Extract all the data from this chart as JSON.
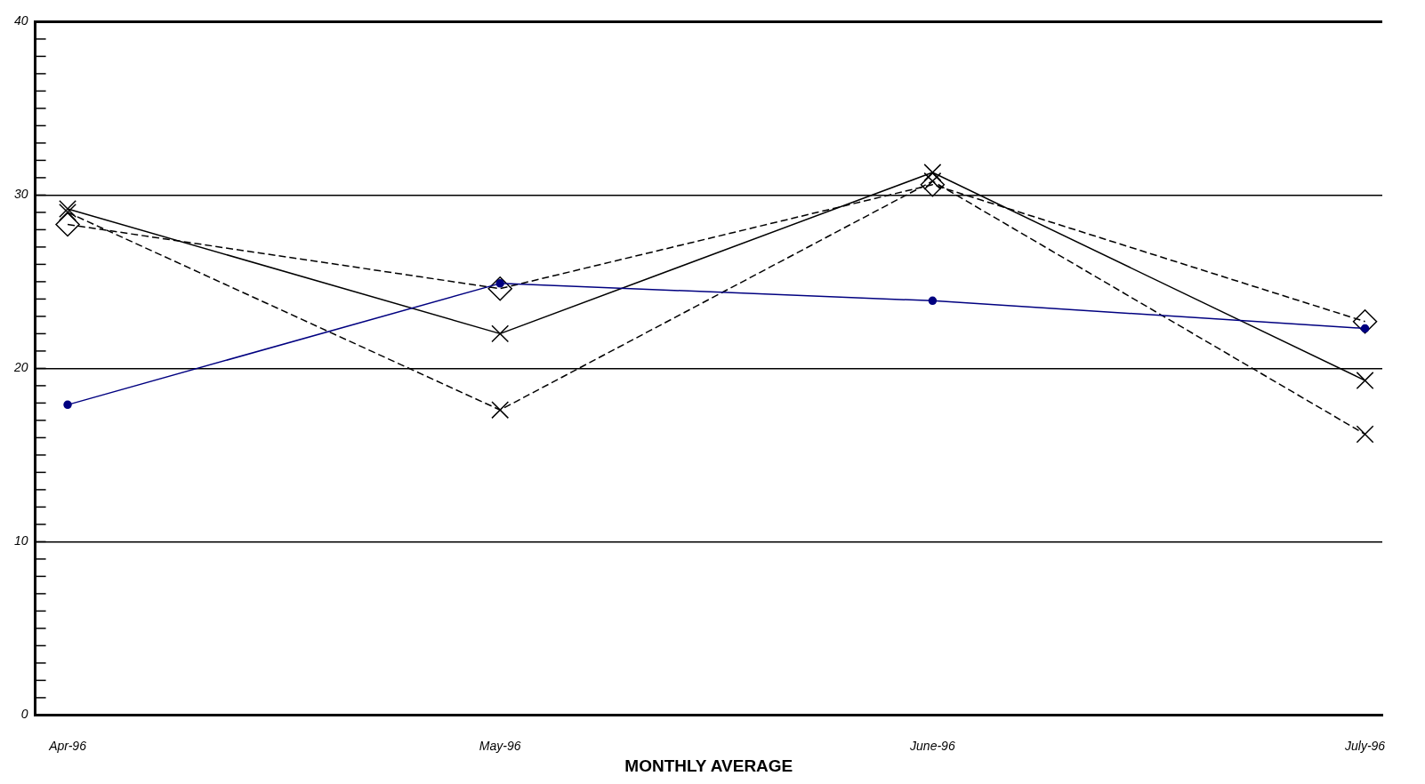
{
  "chart_data": {
    "type": "line",
    "xlabel": "MONTHLY AVERAGE",
    "categories": [
      "Apr-96",
      "May-96",
      "June-96",
      "July-96"
    ],
    "ylim": [
      0,
      40
    ],
    "yticks": [
      0,
      {
        "value": 1,
        "label": null
      },
      {
        "value": 2,
        "label": null
      },
      {
        "value": 3,
        "label": null
      },
      {
        "value": 4,
        "label": null
      },
      {
        "value": 5,
        "label": null
      },
      {
        "value": 6,
        "label": null
      },
      {
        "value": 7,
        "label": null
      },
      {
        "value": 8,
        "label": null
      },
      {
        "value": 9,
        "label": null
      },
      10,
      {
        "value": 11,
        "label": null
      },
      {
        "value": 12,
        "label": null
      },
      {
        "value": 13,
        "label": null
      },
      {
        "value": 14,
        "label": null
      },
      {
        "value": 15,
        "label": null
      },
      {
        "value": 16,
        "label": null
      },
      {
        "value": 17,
        "label": null
      },
      {
        "value": 18,
        "label": null
      },
      {
        "value": 19,
        "label": null
      },
      20,
      {
        "value": 21,
        "label": null
      },
      {
        "value": 22,
        "label": null
      },
      {
        "value": 23,
        "label": null
      },
      {
        "value": 24,
        "label": null
      },
      {
        "value": 25,
        "label": null
      },
      {
        "value": 26,
        "label": null
      },
      {
        "value": 27,
        "label": null
      },
      {
        "value": 28,
        "label": null
      },
      {
        "value": 29,
        "label": null
      },
      30,
      {
        "value": 31,
        "label": null
      },
      {
        "value": 32,
        "label": null
      },
      {
        "value": 33,
        "label": null
      },
      {
        "value": 34,
        "label": null
      },
      {
        "value": 35,
        "label": null
      },
      {
        "value": 36,
        "label": null
      },
      {
        "value": 37,
        "label": null
      },
      {
        "value": 38,
        "label": null
      },
      {
        "value": 39,
        "label": null
      },
      40
    ],
    "grid": "y",
    "legend": false,
    "series": [
      {
        "color": "#000080",
        "values": [
          17.9,
          24.9,
          23.9,
          22.3
        ],
        "marker": "circle",
        "line_style": "solid"
      },
      {
        "color": "#000000",
        "values": [
          29.2,
          22.0,
          31.3,
          19.3
        ],
        "marker": "cross",
        "line_style": "solid"
      },
      {
        "color": "#000000",
        "values": [
          28.3,
          24.6,
          30.6,
          22.7
        ],
        "marker": "diamond",
        "line_style": "dashed"
      },
      {
        "color": "#000000",
        "values": [
          29.0,
          17.6,
          30.8,
          16.2
        ],
        "marker": "cross",
        "line_style": "dashed"
      }
    ]
  }
}
